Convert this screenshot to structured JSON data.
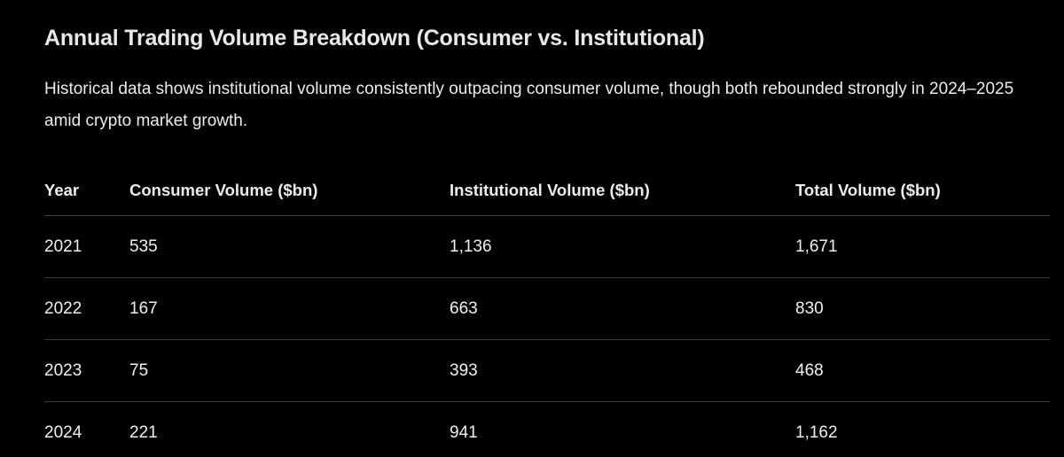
{
  "page": {
    "title": "Annual Trading Volume Breakdown (Consumer vs. Institutional)",
    "subtitle": "Historical data shows institutional volume consistently outpacing consumer volume, though both rebounded strongly in 2024–2025 amid crypto market growth."
  },
  "table": {
    "columns": [
      "Year",
      "Consumer Volume ($bn)",
      "Institutional Volume ($bn)",
      "Total Volume ($bn)"
    ],
    "rows": [
      [
        "2021",
        "535",
        "1,136",
        "1,671"
      ],
      [
        "2022",
        "167",
        "663",
        "830"
      ],
      [
        "2023",
        "75",
        "393",
        "468"
      ],
      [
        "2024",
        "221",
        "941",
        "1,162"
      ]
    ]
  },
  "chart_data": {
    "type": "table",
    "title": "Annual Trading Volume Breakdown (Consumer vs. Institutional)",
    "categories": [
      "2021",
      "2022",
      "2023",
      "2024"
    ],
    "series": [
      {
        "name": "Consumer Volume ($bn)",
        "values": [
          535,
          167,
          75,
          221
        ]
      },
      {
        "name": "Institutional Volume ($bn)",
        "values": [
          1136,
          663,
          393,
          941
        ]
      },
      {
        "name": "Total Volume ($bn)",
        "values": [
          1671,
          830,
          468,
          1162
        ]
      }
    ]
  },
  "colors": {
    "background": "#000000",
    "text": "#ececec",
    "divider": "#3a3a3a"
  }
}
